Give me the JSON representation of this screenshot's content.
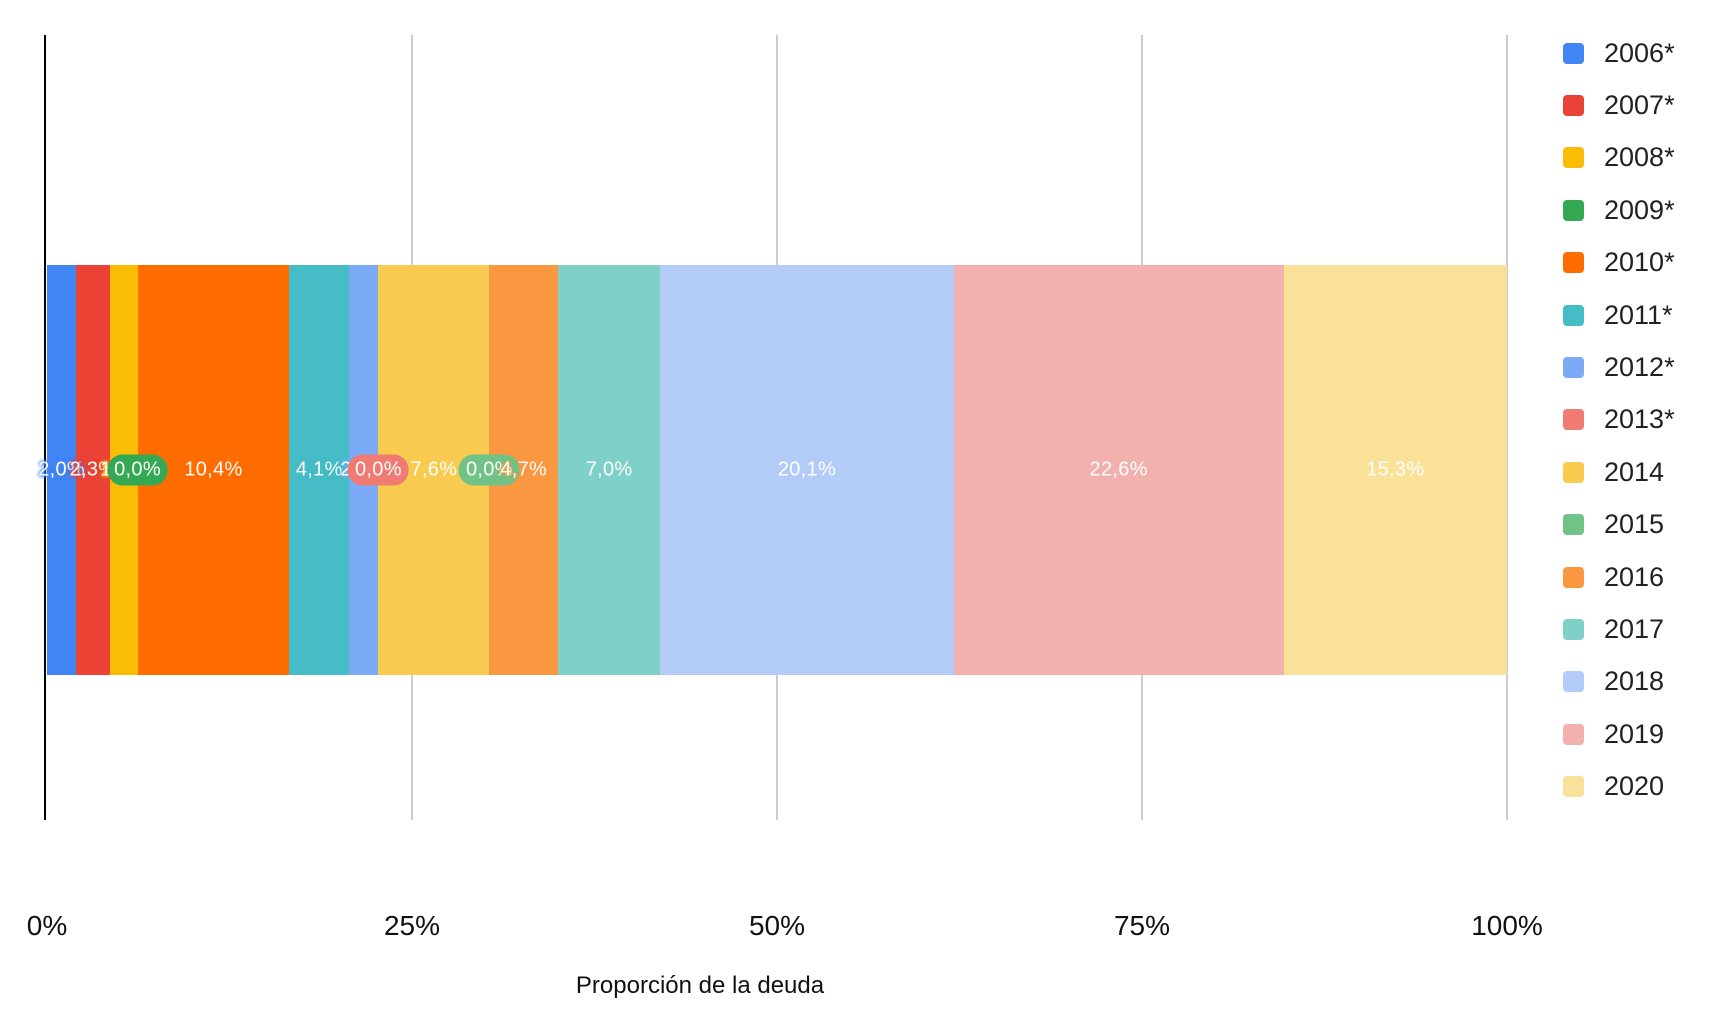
{
  "chart_data": {
    "type": "bar",
    "variant": "stacked-horizontal-100",
    "title": "",
    "xlabel": "Proporción de la deuda",
    "ylabel": "",
    "xlim": [
      0,
      100
    ],
    "grid": true,
    "legend_position": "right",
    "categories": [
      "Proporción de la deuda"
    ],
    "x_ticks": [
      {
        "value": 0,
        "label": "0%"
      },
      {
        "value": 25,
        "label": "25%"
      },
      {
        "value": 50,
        "label": "50%"
      },
      {
        "value": 75,
        "label": "75%"
      },
      {
        "value": 100,
        "label": "100%"
      }
    ],
    "series": [
      {
        "name": "2006*",
        "value": 2.0,
        "label": "2,0%",
        "color": "#4285F4"
      },
      {
        "name": "2007*",
        "value": 2.3,
        "label": "2,3%",
        "color": "#EA4335"
      },
      {
        "name": "2008*",
        "value": 1.9,
        "label": "1,9%",
        "color": "#FBBC04"
      },
      {
        "name": "2009*",
        "value": 0.0,
        "label": "0,0%",
        "color": "#34A853"
      },
      {
        "name": "2010*",
        "value": 10.4,
        "label": "10,4%",
        "color": "#FF6D01"
      },
      {
        "name": "2011*",
        "value": 4.1,
        "label": "4,1%",
        "color": "#46BDC6"
      },
      {
        "name": "2012*",
        "value": 2.0,
        "label": "2,0%",
        "color": "#7BAAF7"
      },
      {
        "name": "2013*",
        "value": 0.0,
        "label": "0,0%",
        "color": "#F07B72"
      },
      {
        "name": "2014",
        "value": 7.6,
        "label": "7,6%",
        "color": "#F9CB50"
      },
      {
        "name": "2015",
        "value": 0.0,
        "label": "0,0%",
        "color": "#71C287"
      },
      {
        "name": "2016",
        "value": 4.7,
        "label": "4,7%",
        "color": "#FA9841"
      },
      {
        "name": "2017",
        "value": 7.0,
        "label": "7,0%",
        "color": "#7FD1C8"
      },
      {
        "name": "2018",
        "value": 20.1,
        "label": "20,1%",
        "color": "#B3CCF8"
      },
      {
        "name": "2019",
        "value": 22.6,
        "label": "22,6%",
        "color": "#F2B1AE"
      },
      {
        "name": "2020",
        "value": 15.3,
        "label": "15,3%",
        "color": "#FAE199"
      }
    ]
  },
  "colors": {
    "background": "#ffffff",
    "axis_line": "#000000",
    "gridline": "#cccccc",
    "bar_label_text": "#ffffff",
    "tick_text": "#111111"
  }
}
